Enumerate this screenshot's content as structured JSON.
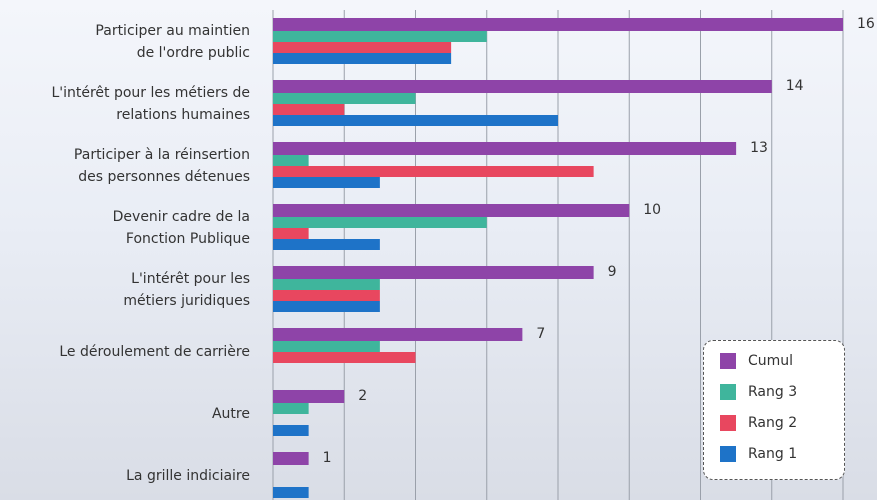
{
  "chart_data": {
    "type": "hbar",
    "categories": [
      "Participer au maintien\nde l'ordre public",
      "L'intérêt pour les métiers de\nrelations humaines",
      "Participer à la réinsertion\ndes personnes détenues",
      "Devenir cadre de la\nFonction Publique",
      "L'intérêt pour les\nmétiers juridiques",
      "Le déroulement de carrière",
      "Autre",
      "La grille indiciaire"
    ],
    "series": [
      {
        "name": "Cumul",
        "color": "#8e44a8",
        "values": [
          16,
          14,
          13,
          10,
          9,
          7,
          2,
          1
        ]
      },
      {
        "name": "Rang 3",
        "color": "#3fb59c",
        "values": [
          6,
          4,
          1,
          6,
          3,
          3,
          1,
          0
        ]
      },
      {
        "name": "Rang 2",
        "color": "#e8475f",
        "values": [
          5,
          2,
          9,
          1,
          3,
          4,
          0,
          0
        ]
      },
      {
        "name": "Rang 1",
        "color": "#1e73c8",
        "values": [
          5,
          8,
          3,
          3,
          3,
          0,
          1,
          1
        ]
      }
    ],
    "xlim": [
      0,
      16
    ],
    "xticks": [
      0,
      2,
      4,
      6,
      8,
      10,
      12,
      14,
      16
    ],
    "grid": true
  }
}
